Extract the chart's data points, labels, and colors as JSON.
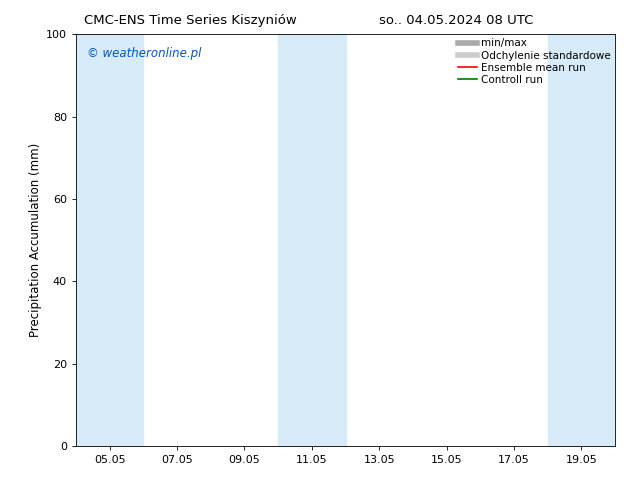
{
  "title_left": "CMC-ENS Time Series Kiszyniów",
  "title_right": "so.. 04.05.2024 08 UTC",
  "ylabel": "Precipitation Accumulation (mm)",
  "ylim": [
    0,
    100
  ],
  "yticks": [
    0,
    20,
    40,
    60,
    80,
    100
  ],
  "xtick_labels": [
    "05.05",
    "07.05",
    "09.05",
    "11.05",
    "13.05",
    "15.05",
    "17.05",
    "19.05"
  ],
  "xtick_positions": [
    1,
    3,
    5,
    7,
    9,
    11,
    13,
    15
  ],
  "x_min": 0,
  "x_max": 16,
  "watermark": "© weatheronline.pl",
  "watermark_color": "#0055cc",
  "bg_color": "#ffffff",
  "shaded_bands": [
    {
      "x_start": 0,
      "x_end": 2,
      "color": "#d6eaf8"
    },
    {
      "x_start": 6,
      "x_end": 8,
      "color": "#d6eaf8"
    },
    {
      "x_start": 14,
      "x_end": 16,
      "color": "#d6eaf8"
    }
  ],
  "legend_entries": [
    {
      "label": "min/max",
      "color": "#aaaaaa",
      "lw": 4.0
    },
    {
      "label": "Odchylenie standardowe",
      "color": "#cccccc",
      "lw": 4.0
    },
    {
      "label": "Ensemble mean run",
      "color": "#ff0000",
      "lw": 1.2
    },
    {
      "label": "Controll run",
      "color": "#007700",
      "lw": 1.2
    }
  ],
  "title_fontsize": 9.5,
  "axis_label_fontsize": 8.5,
  "tick_fontsize": 8,
  "watermark_fontsize": 8.5,
  "legend_fontsize": 7.5
}
